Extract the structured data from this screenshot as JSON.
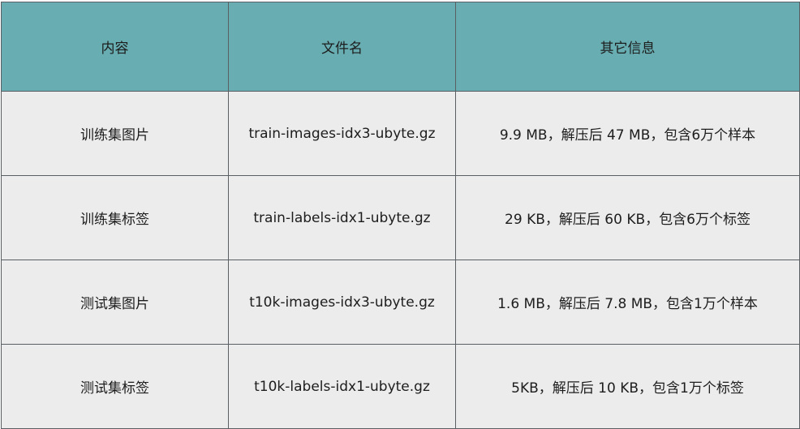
{
  "table": {
    "headers": [
      "内容",
      "文件名",
      "其它信息"
    ],
    "rows": [
      [
        "训练集图片",
        "train-images-idx3-ubyte.gz",
        "9.9 MB，解压后 47 MB，包含6万个样本"
      ],
      [
        "训练集标签",
        "train-labels-idx1-ubyte.gz",
        "29 KB，解压后 60 KB，包含6万个标签"
      ],
      [
        "测试集图片",
        "t10k-images-idx3-ubyte.gz",
        "1.6 MB，解压后 7.8 MB，包含1万个样本"
      ],
      [
        "测试集标签",
        "t10k-labels-idx1-ubyte.gz",
        "5KB，解压后 10 KB，包含1万个标签"
      ]
    ]
  },
  "colors": {
    "header_bg": "#67adb1",
    "row_bg": "#ececec",
    "border": "#5a5f63"
  }
}
